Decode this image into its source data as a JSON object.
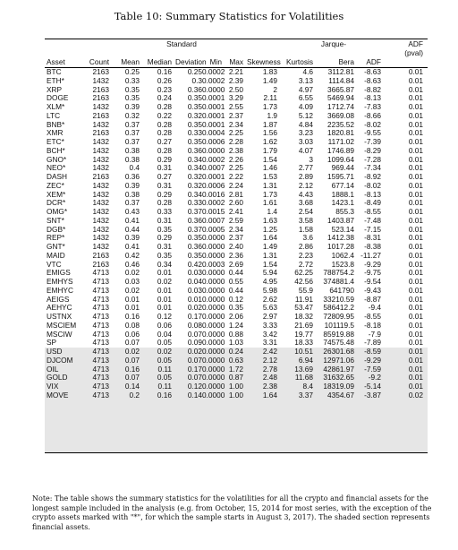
{
  "caption": "Table 10: Summary Statistics for Volatilities",
  "header_row1": {
    "standard": "Standard",
    "jarque": "Jarque-",
    "adf": "ADF"
  },
  "header_row2": {
    "deviation_prefix": "",
    "bera": "",
    "pval": "(pval)"
  },
  "columns": [
    "Asset",
    "Count",
    "Mean",
    "Median",
    "Deviation",
    "Min",
    "Max",
    "Skewness",
    "Kurtosis",
    "Bera",
    "ADF",
    "(pval)"
  ],
  "rows": [
    [
      "BTC",
      "2163",
      "0.25",
      "0.16",
      "0.25",
      "0.0002",
      "2.21",
      "1.83",
      "4.6",
      "3112.81",
      "-8.63",
      "0.01"
    ],
    [
      "ETH*",
      "1432",
      "0.33",
      "0.26",
      "0.3",
      "0.0002",
      "2.39",
      "1.49",
      "3.13",
      "1114.84",
      "-8.63",
      "0.01"
    ],
    [
      "XRP",
      "2163",
      "0.35",
      "0.23",
      "0.36",
      "0.0000",
      "2.50",
      "2",
      "4.97",
      "3665.87",
      "-8.82",
      "0.01"
    ],
    [
      "DOGE",
      "2163",
      "0.35",
      "0.24",
      "0.35",
      "0.0001",
      "3.29",
      "2.11",
      "6.55",
      "5469.94",
      "-8.13",
      "0.01"
    ],
    [
      "XLM*",
      "1432",
      "0.39",
      "0.28",
      "0.35",
      "0.0001",
      "2.55",
      "1.73",
      "4.09",
      "1712.74",
      "-7.83",
      "0.01"
    ],
    [
      "LTC",
      "2163",
      "0.32",
      "0.22",
      "0.32",
      "0.0001",
      "2.37",
      "1.9",
      "5.12",
      "3669.08",
      "-8.66",
      "0.01"
    ],
    [
      "BNB*",
      "1432",
      "0.37",
      "0.28",
      "0.35",
      "0.0001",
      "2.34",
      "1.87",
      "4.84",
      "2235.52",
      "-8.02",
      "0.01"
    ],
    [
      "XMR",
      "2163",
      "0.37",
      "0.28",
      "0.33",
      "0.0004",
      "2.25",
      "1.56",
      "3.23",
      "1820.81",
      "-9.55",
      "0.01"
    ],
    [
      "ETC*",
      "1432",
      "0.37",
      "0.27",
      "0.35",
      "0.0006",
      "2.28",
      "1.62",
      "3.03",
      "1171.02",
      "-7.39",
      "0.01"
    ],
    [
      "BCH*",
      "1432",
      "0.38",
      "0.28",
      "0.36",
      "0.0000",
      "2.38",
      "1.79",
      "4.07",
      "1746.89",
      "-8.29",
      "0.01"
    ],
    [
      "GNO*",
      "1432",
      "0.38",
      "0.29",
      "0.34",
      "0.0002",
      "2.26",
      "1.54",
      "3",
      "1099.64",
      "-7.28",
      "0.01"
    ],
    [
      "NEO*",
      "1432",
      "0.4",
      "0.31",
      "0.34",
      "0.0007",
      "2.25",
      "1.46",
      "2.77",
      "969.44",
      "-7.34",
      "0.01"
    ],
    [
      "DASH",
      "2163",
      "0.36",
      "0.27",
      "0.32",
      "0.0001",
      "2.22",
      "1.53",
      "2.89",
      "1595.71",
      "-8.92",
      "0.01"
    ],
    [
      "ZEC*",
      "1432",
      "0.39",
      "0.31",
      "0.32",
      "0.0006",
      "2.24",
      "1.31",
      "2.12",
      "677.14",
      "-8.02",
      "0.01"
    ],
    [
      "XEM*",
      "1432",
      "0.38",
      "0.29",
      "0.34",
      "0.0016",
      "2.81",
      "1.73",
      "4.43",
      "1888.1",
      "-8.13",
      "0.01"
    ],
    [
      "DCR*",
      "1432",
      "0.37",
      "0.28",
      "0.33",
      "0.0002",
      "2.60",
      "1.61",
      "3.68",
      "1423.1",
      "-8.49",
      "0.01"
    ],
    [
      "OMG*",
      "1432",
      "0.43",
      "0.33",
      "0.37",
      "0.0015",
      "2.41",
      "1.4",
      "2.54",
      "855.3",
      "-8.55",
      "0.01"
    ],
    [
      "SNT*",
      "1432",
      "0.41",
      "0.31",
      "0.36",
      "0.0007",
      "2.59",
      "1.63",
      "3.58",
      "1403.87",
      "-7.48",
      "0.01"
    ],
    [
      "DGB*",
      "1432",
      "0.44",
      "0.35",
      "0.37",
      "0.0005",
      "2.34",
      "1.25",
      "1.58",
      "523.14",
      "-7.15",
      "0.01"
    ],
    [
      "REP*",
      "1432",
      "0.39",
      "0.29",
      "0.35",
      "0.0000",
      "2.37",
      "1.64",
      "3.6",
      "1412.38",
      "-8.31",
      "0.01"
    ],
    [
      "GNT*",
      "1432",
      "0.41",
      "0.31",
      "0.36",
      "0.0000",
      "2.40",
      "1.49",
      "2.86",
      "1017.28",
      "-8.38",
      "0.01"
    ],
    [
      "MAID",
      "2163",
      "0.42",
      "0.35",
      "0.35",
      "0.0000",
      "2.36",
      "1.31",
      "2.23",
      "1062.4",
      "-11.27",
      "0.01"
    ],
    [
      "VTC",
      "2163",
      "0.46",
      "0.34",
      "0.42",
      "0.0003",
      "2.69",
      "1.54",
      "2.72",
      "1523.8",
      "-9.29",
      "0.01"
    ],
    [
      "EMIGS",
      "4713",
      "0.02",
      "0.01",
      "0.03",
      "0.0000",
      "0.44",
      "5.94",
      "62.25",
      "788754.2",
      "-9.75",
      "0.01"
    ],
    [
      "EMHYS",
      "4713",
      "0.03",
      "0.02",
      "0.04",
      "0.0000",
      "0.55",
      "4.95",
      "42.56",
      "374881.4",
      "-9.54",
      "0.01"
    ],
    [
      "EMHYC",
      "4713",
      "0.02",
      "0.01",
      "0.03",
      "0.0000",
      "0.44",
      "5.98",
      "55.9",
      "641790",
      "-9.43",
      "0.01"
    ],
    [
      "AEIGS",
      "4713",
      "0.01",
      "0.01",
      "0.01",
      "0.0000",
      "0.12",
      "2.62",
      "11.91",
      "33210.59",
      "-8.87",
      "0.01"
    ],
    [
      "AEHYC",
      "4713",
      "0.01",
      "0.01",
      "0.02",
      "0.0000",
      "0.35",
      "5.63",
      "53.47",
      "586412.2",
      "-9.4",
      "0.01"
    ],
    [
      "USTNX",
      "4713",
      "0.16",
      "0.12",
      "0.17",
      "0.0000",
      "2.06",
      "2.97",
      "18.32",
      "72809.95",
      "-8.55",
      "0.01"
    ],
    [
      "MSCIEM",
      "4713",
      "0.08",
      "0.06",
      "0.08",
      "0.0000",
      "1.24",
      "3.33",
      "21.69",
      "101119.5",
      "-8.18",
      "0.01"
    ],
    [
      "MSCIW",
      "4713",
      "0.06",
      "0.04",
      "0.07",
      "0.0000",
      "0.88",
      "3.42",
      "19.77",
      "85919.88",
      "-7.9",
      "0.01"
    ],
    [
      "SP",
      "4713",
      "0.07",
      "0.05",
      "0.09",
      "0.0000",
      "1.03",
      "3.31",
      "18.33",
      "74575.48",
      "-7.89",
      "0.01"
    ],
    [
      "USD",
      "4713",
      "0.02",
      "0.02",
      "0.02",
      "0.0000",
      "0.24",
      "2.42",
      "10.51",
      "26301.68",
      "-8.59",
      "0.01"
    ],
    [
      "DJCOM",
      "4713",
      "0.07",
      "0.05",
      "0.07",
      "0.0000",
      "0.63",
      "2.12",
      "6.94",
      "12971.06",
      "-9.29",
      "0.01"
    ],
    [
      "OIL",
      "4713",
      "0.16",
      "0.11",
      "0.17",
      "0.0000",
      "1.72",
      "2.78",
      "13.69",
      "42861.97",
      "-7.59",
      "0.01"
    ],
    [
      "GOLD",
      "4713",
      "0.07",
      "0.05",
      "0.07",
      "0.0000",
      "0.87",
      "2.48",
      "11.68",
      "31632.65",
      "-9.2",
      "0.01"
    ],
    [
      "VIX",
      "4713",
      "0.14",
      "0.11",
      "0.12",
      "0.0000",
      "1.00",
      "2.38",
      "8.4",
      "18319.09",
      "-5.14",
      "0.01"
    ],
    [
      "MOVE",
      "4713",
      "0.2",
      "0.16",
      "0.14",
      "0.0000",
      "1.00",
      "1.64",
      "3.37",
      "4354.67",
      "-3.87",
      "0.02"
    ]
  ],
  "note": "Note: The table shows the summary statistics for the volatilities for all the crypto and financial assets for the longest sample included in the analysis (e.g. from October, 15, 2014 for most series, with the exception of the crypto assets marked with \"*\", for which the sample starts in August 3, 2017). The shaded section represents financial assets."
}
